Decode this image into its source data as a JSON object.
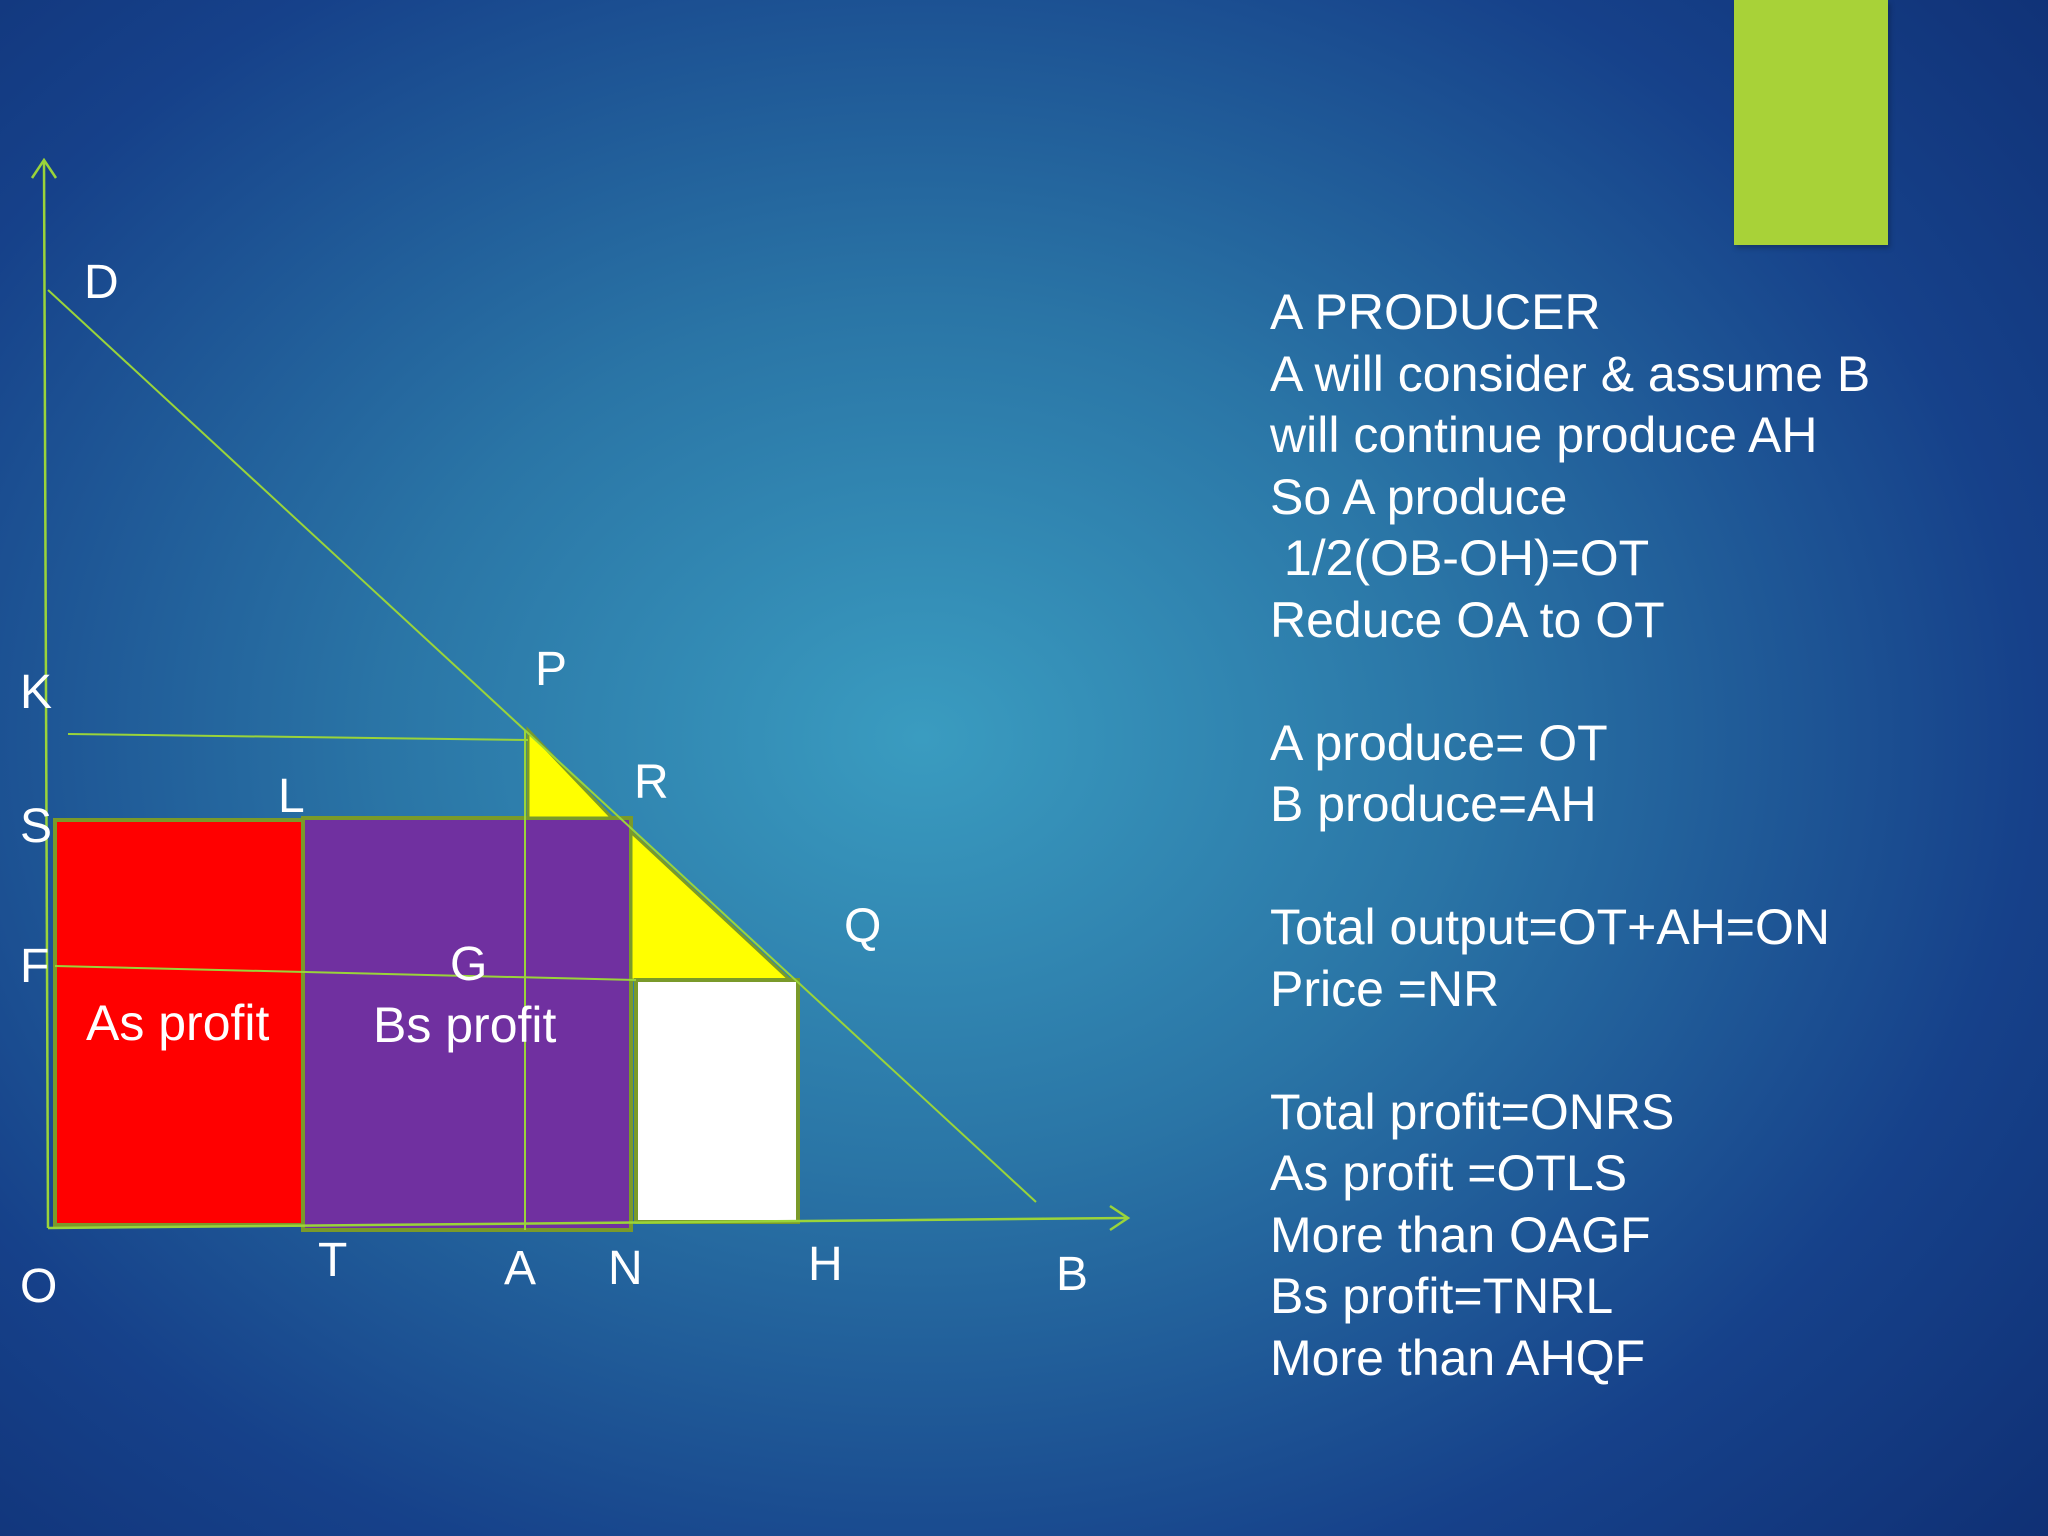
{
  "diagram": {
    "points": {
      "D": "D",
      "P": "P",
      "R": "R",
      "Q": "Q",
      "K": "K",
      "S": "S",
      "F": "F",
      "L": "L",
      "G": "G",
      "O": "O",
      "T": "T",
      "A": "A",
      "N": "N",
      "H": "H",
      "B": "B"
    },
    "regions": {
      "a_profit": "As profit",
      "b_profit": "Bs profit"
    },
    "colors": {
      "axis": "#9ad43a",
      "a_profit_fill": "#ff0000",
      "b_profit_fill": "#7030a0",
      "extra_fill": "#ffff00",
      "remainder_fill": "#ffffff",
      "accent": "#a8d238"
    }
  },
  "notes": [
    "A PRODUCER",
    "A will consider & assume B",
    "will continue produce AH",
    "So A produce",
    " 1/2(OB-OH)=OT",
    "Reduce OA to OT",
    "",
    "A produce= OT",
    "B produce=AH",
    "",
    "Total output=OT+AH=ON",
    "Price =NR",
    "",
    "Total profit=ONRS",
    "As profit =OTLS",
    "More than OAGF",
    "Bs profit=TNRL",
    "More than AHQF"
  ]
}
